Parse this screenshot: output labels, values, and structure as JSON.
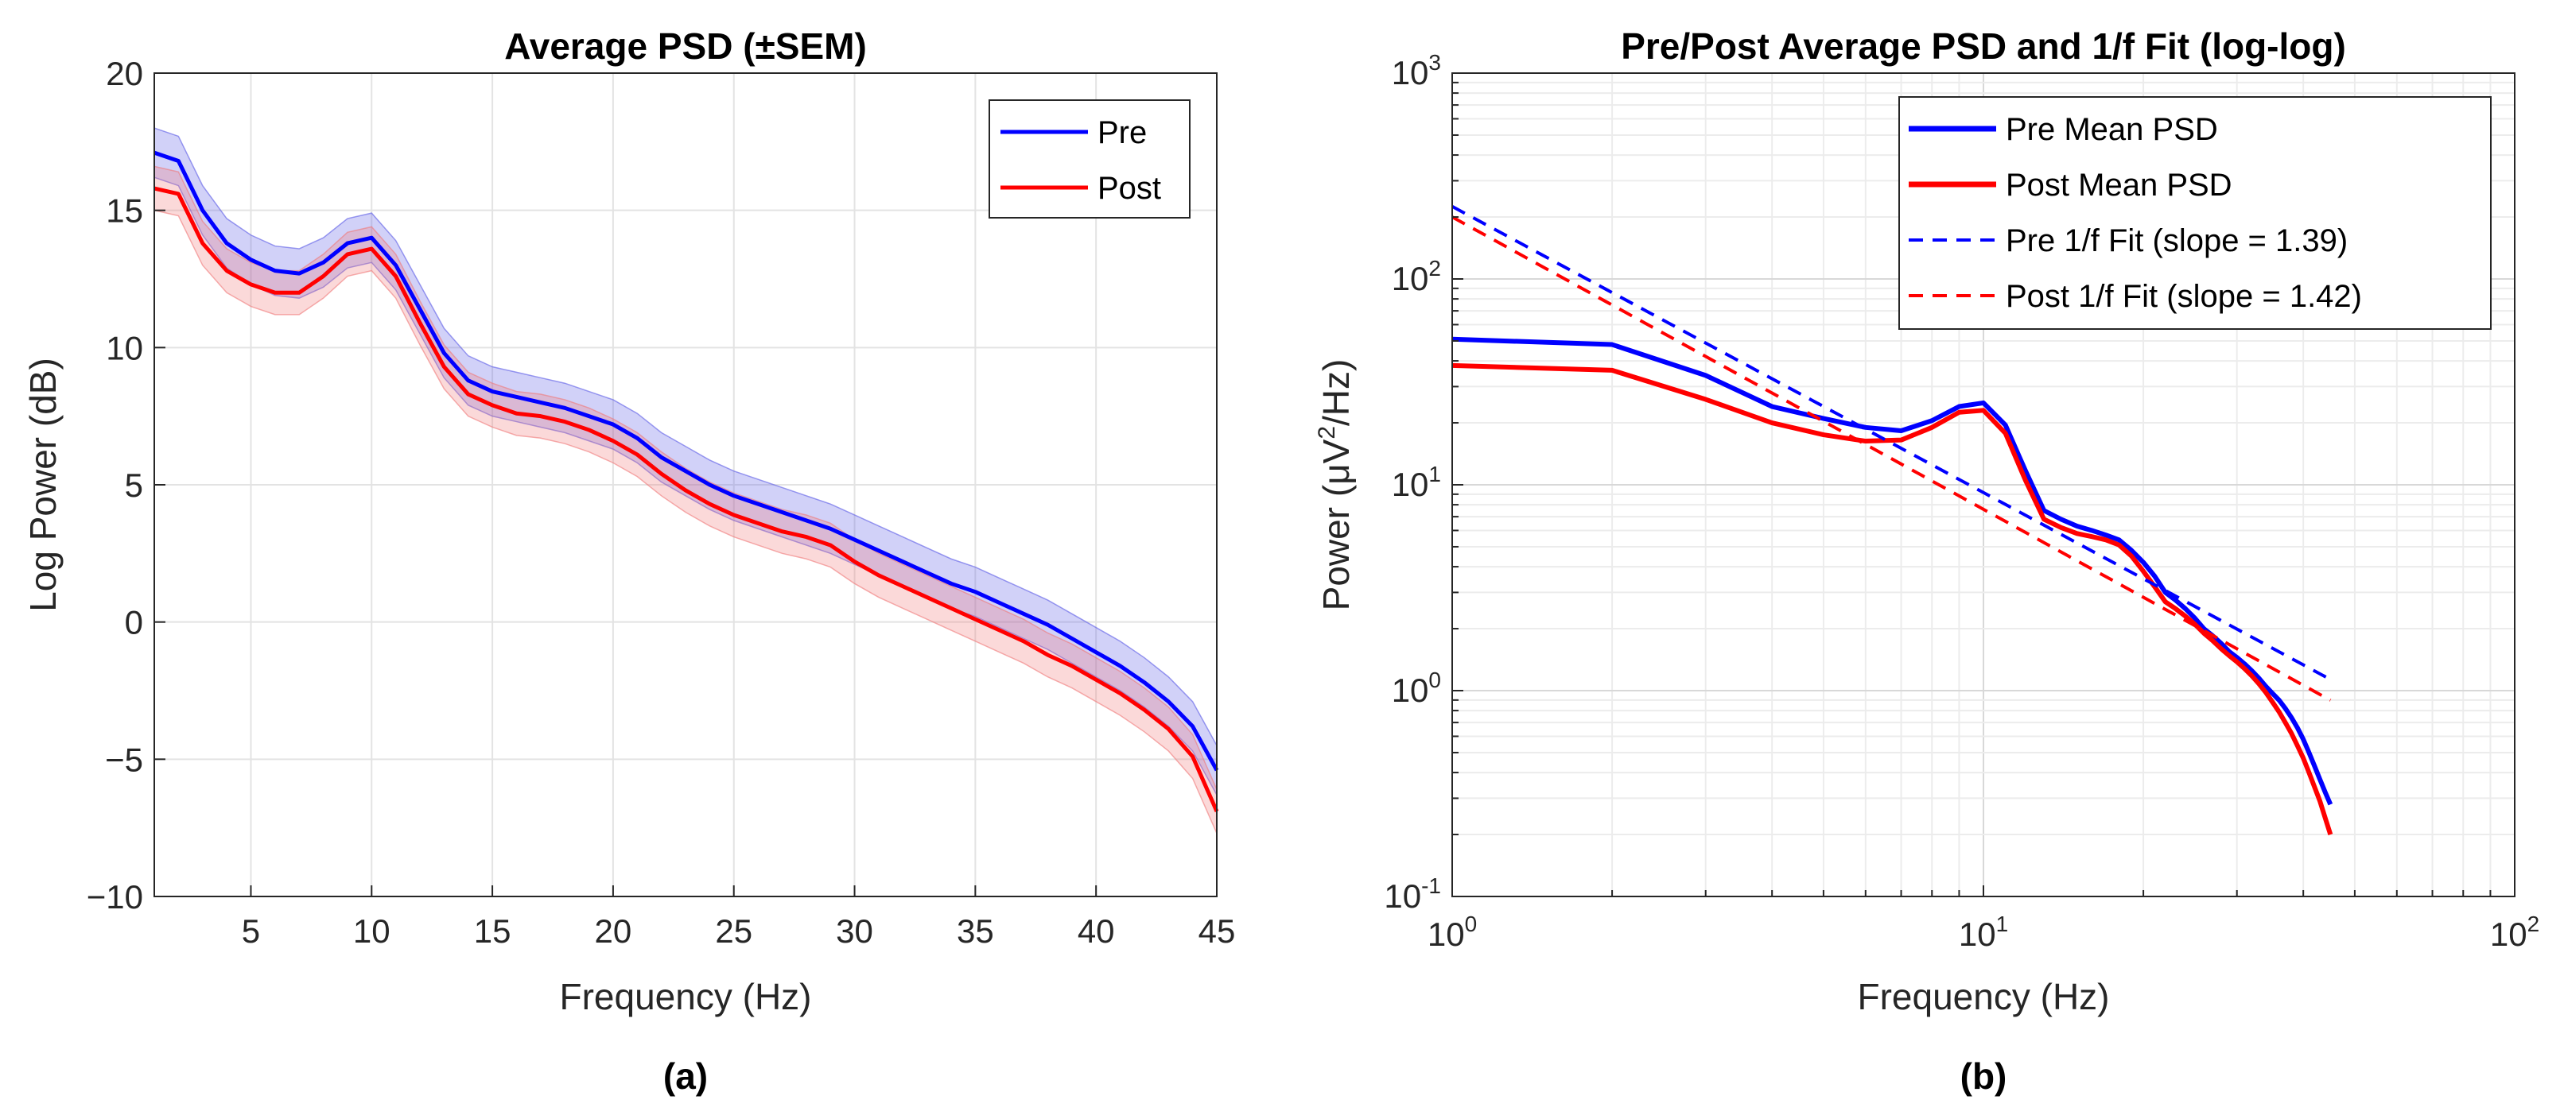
{
  "chart_data": [
    {
      "type": "line",
      "caption": "(a)",
      "title": "Average PSD (±SEM)",
      "xlabel": "Frequency (Hz)",
      "ylabel": "Log Power (dB)",
      "xlim": [
        1,
        45
      ],
      "ylim": [
        -10,
        20
      ],
      "xticks": [
        5,
        10,
        15,
        20,
        25,
        30,
        35,
        40,
        45
      ],
      "xtick_labels": [
        "5",
        "10",
        "15",
        "20",
        "25",
        "30",
        "35",
        "40",
        "45"
      ],
      "yticks": [
        -10,
        -5,
        0,
        5,
        10,
        15,
        20
      ],
      "ytick_labels": [
        "−10",
        "−5",
        "0",
        "5",
        "10",
        "15",
        "20"
      ],
      "grid": true,
      "legend_position": "top-right",
      "x": [
        1,
        2,
        3,
        4,
        5,
        6,
        7,
        8,
        9,
        10,
        11,
        12,
        13,
        14,
        15,
        16,
        17,
        18,
        19,
        20,
        21,
        22,
        23,
        24,
        25,
        26,
        27,
        28,
        29,
        30,
        31,
        32,
        33,
        34,
        35,
        36,
        37,
        38,
        39,
        40,
        41,
        42,
        43,
        44,
        45
      ],
      "series": [
        {
          "name": "Pre",
          "color": "#0000ff",
          "band_color": "#5a5ae6",
          "sem": 0.9,
          "values": [
            17.1,
            16.8,
            15.0,
            13.8,
            13.2,
            12.8,
            12.7,
            13.1,
            13.8,
            14.0,
            13.0,
            11.4,
            9.8,
            8.8,
            8.4,
            8.2,
            8.0,
            7.8,
            7.5,
            7.2,
            6.7,
            6.0,
            5.5,
            5.0,
            4.6,
            4.3,
            4.0,
            3.7,
            3.4,
            3.0,
            2.6,
            2.2,
            1.8,
            1.4,
            1.1,
            0.7,
            0.3,
            -0.1,
            -0.6,
            -1.1,
            -1.6,
            -2.2,
            -2.9,
            -3.8,
            -5.4
          ]
        },
        {
          "name": "Post",
          "color": "#ff0000",
          "band_color": "#f07878",
          "sem": 0.8,
          "values": [
            15.8,
            15.6,
            13.8,
            12.8,
            12.3,
            12.0,
            12.0,
            12.6,
            13.4,
            13.6,
            12.6,
            10.9,
            9.3,
            8.3,
            7.9,
            7.6,
            7.5,
            7.3,
            7.0,
            6.6,
            6.1,
            5.4,
            4.8,
            4.3,
            3.9,
            3.6,
            3.3,
            3.1,
            2.8,
            2.2,
            1.7,
            1.3,
            0.9,
            0.5,
            0.1,
            -0.3,
            -0.7,
            -1.2,
            -1.6,
            -2.1,
            -2.6,
            -3.2,
            -3.9,
            -4.9,
            -6.9
          ]
        }
      ]
    },
    {
      "type": "line",
      "scale": "log-log",
      "caption": "(b)",
      "title": "Pre/Post Average PSD and 1/f Fit (log-log)",
      "xlabel": "Frequency (Hz)",
      "ylabel_main": "Power (μV",
      "ylabel_sup": "2",
      "ylabel_end": "/Hz)",
      "xlim": [
        1,
        100
      ],
      "ylim": [
        0.1,
        1000
      ],
      "x_tick_mantissa": "10",
      "x_tick_exponents": [
        "0",
        "1",
        "2"
      ],
      "y_tick_mantissa": "10",
      "y_tick_exponents": [
        "-1",
        "0",
        "1",
        "2",
        "3"
      ],
      "grid": true,
      "legend_position": "top-right",
      "x": [
        1,
        2,
        3,
        4,
        5,
        6,
        7,
        8,
        9,
        10,
        11,
        12,
        13,
        14,
        15,
        16,
        17,
        18,
        19,
        20,
        21,
        22,
        23,
        24,
        25,
        26,
        27,
        28,
        29,
        30,
        31,
        32,
        33,
        34,
        35,
        36,
        37,
        38,
        39,
        40,
        41,
        42,
        43,
        44,
        45
      ],
      "series": [
        {
          "name": "Pre Mean PSD",
          "color": "#0000ff",
          "style": "solid",
          "values": [
            51,
            48,
            34,
            24,
            21,
            19,
            18.3,
            20.5,
            24,
            25,
            19.5,
            11.7,
            7.5,
            6.8,
            6.3,
            6.0,
            5.7,
            5.4,
            4.8,
            4.2,
            3.6,
            3.0,
            2.75,
            2.5,
            2.25,
            2.0,
            1.85,
            1.7,
            1.55,
            1.45,
            1.35,
            1.25,
            1.15,
            1.05,
            0.97,
            0.9,
            0.82,
            0.74,
            0.66,
            0.58,
            0.5,
            0.43,
            0.37,
            0.32,
            0.28
          ]
        },
        {
          "name": "Post Mean PSD",
          "color": "#ff0000",
          "style": "solid",
          "values": [
            38,
            36,
            26,
            20,
            17.5,
            16.3,
            16.5,
            19,
            22.5,
            23,
            17.8,
            10.5,
            6.8,
            6.2,
            5.8,
            5.6,
            5.4,
            5.1,
            4.5,
            3.8,
            3.2,
            2.7,
            2.5,
            2.3,
            2.1,
            1.9,
            1.75,
            1.6,
            1.48,
            1.38,
            1.28,
            1.18,
            1.08,
            0.98,
            0.88,
            0.79,
            0.7,
            0.62,
            0.54,
            0.47,
            0.4,
            0.34,
            0.29,
            0.24,
            0.2
          ]
        },
        {
          "name": "Pre 1/f Fit (slope = 1.39)",
          "color": "#0000ff",
          "style": "dashed",
          "slope": 1.39,
          "intercept": 225,
          "x_range": [
            1,
            45
          ]
        },
        {
          "name": "Post 1/f Fit (slope = 1.42)",
          "color": "#ff0000",
          "style": "dashed",
          "slope": 1.42,
          "intercept": 200,
          "x_range": [
            1,
            45
          ]
        }
      ]
    }
  ]
}
